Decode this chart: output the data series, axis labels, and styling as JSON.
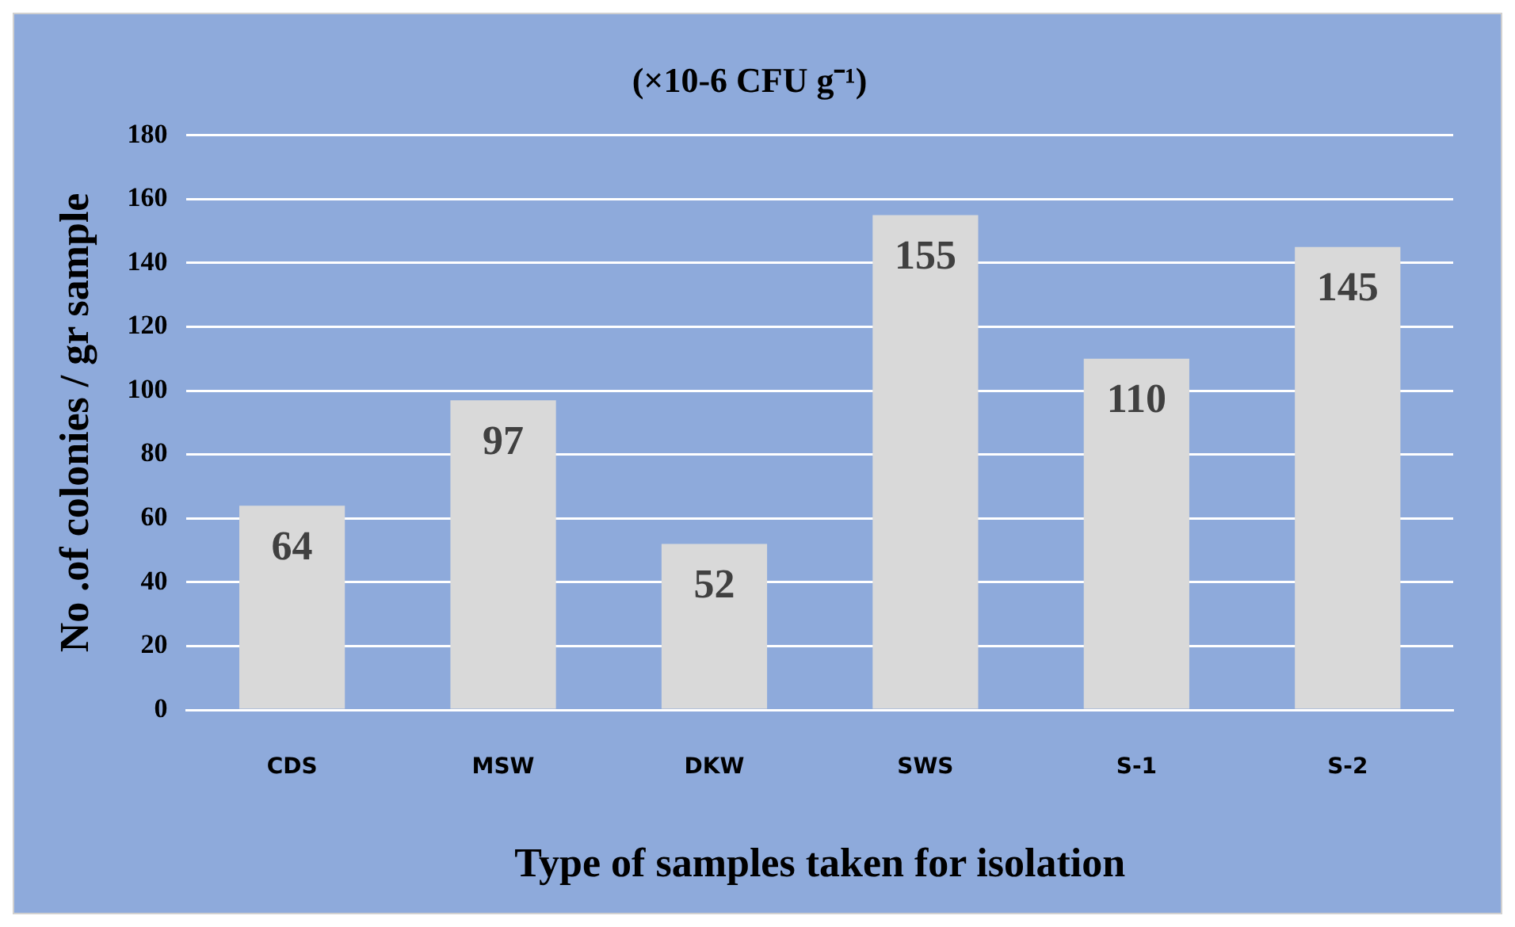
{
  "chart_data": {
    "type": "bar",
    "title": "(×10-6 CFU g⁻¹)",
    "xlabel": "Type of samples taken for isolation",
    "ylabel": "No .of colonies / gr sample",
    "categories": [
      "CDS",
      "MSW",
      "DKW",
      "SWS",
      "S-1",
      "S-2"
    ],
    "values": [
      64,
      97,
      52,
      155,
      110,
      145
    ],
    "color": "#d9d9d9",
    "ylim": [
      0,
      180
    ],
    "yticks": [
      0,
      20,
      40,
      60,
      80,
      100,
      120,
      140,
      160,
      180
    ],
    "grid": "y",
    "data_labels": true
  }
}
